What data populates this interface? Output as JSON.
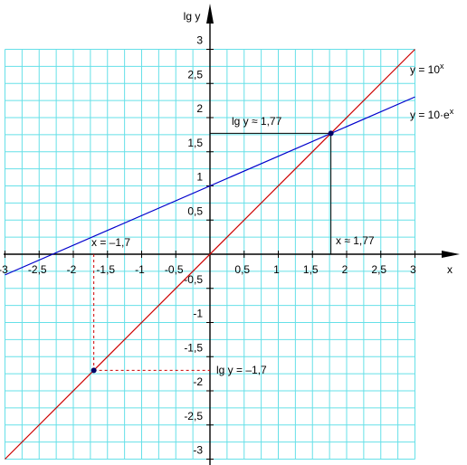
{
  "chart_data": {
    "type": "line",
    "xlabel": "x",
    "ylabel": "lg y",
    "xlim": [
      -3,
      3
    ],
    "ylim": [
      -3,
      3
    ],
    "grid": true,
    "grid_step": 0.25,
    "x_ticks": [
      {
        "value": -3,
        "label": "-3"
      },
      {
        "value": -2.5,
        "label": "-2,5"
      },
      {
        "value": -2,
        "label": "-2"
      },
      {
        "value": -1.5,
        "label": "-1,5"
      },
      {
        "value": -1,
        "label": "-1"
      },
      {
        "value": -0.5,
        "label": "-0,5"
      },
      {
        "value": 0.5,
        "label": "0,5"
      },
      {
        "value": 1,
        "label": "1"
      },
      {
        "value": 1.5,
        "label": "1,5"
      },
      {
        "value": 2,
        "label": "2"
      },
      {
        "value": 2.5,
        "label": "2,5"
      },
      {
        "value": 3,
        "label": "3"
      }
    ],
    "y_ticks": [
      {
        "value": 3,
        "label": "3"
      },
      {
        "value": 2.5,
        "label": "2,5"
      },
      {
        "value": 2,
        "label": "2"
      },
      {
        "value": 1.5,
        "label": "1,5"
      },
      {
        "value": 1,
        "label": "1"
      },
      {
        "value": 0.5,
        "label": "0,5"
      },
      {
        "value": -0.5,
        "label": "-0,5"
      },
      {
        "value": -1,
        "label": "-1"
      },
      {
        "value": -1.5,
        "label": "-1,5"
      },
      {
        "value": -2,
        "label": "-2"
      },
      {
        "value": -2.5,
        "label": "-2,5"
      },
      {
        "value": -3,
        "label": "-3"
      }
    ],
    "series": [
      {
        "name": "y = 10",
        "name_sup": "x",
        "color": "#cc0000",
        "x": [
          -3,
          3
        ],
        "y": [
          -3,
          3
        ]
      },
      {
        "name": "y = 10·e",
        "name_sup": "x",
        "color": "#0000cc",
        "x": [
          -3,
          3
        ],
        "y": [
          -0.3029,
          2.3029
        ]
      }
    ],
    "points": [
      {
        "x": 1.77,
        "y": 1.77,
        "color": "#000066"
      },
      {
        "x": -1.7,
        "y": -1.7,
        "color": "#000066"
      }
    ],
    "annotations": {
      "intersection_lgy": "lg y ≈ 1,77",
      "intersection_x": "x ≈ 1,77",
      "point_x": "x = –1,7",
      "point_lgy": "lg y = –1,7"
    },
    "colors": {
      "grid": "#66e0e8",
      "axis": "#000000",
      "annotation_red": "#cc0000",
      "annotation_black": "#000000"
    }
  }
}
